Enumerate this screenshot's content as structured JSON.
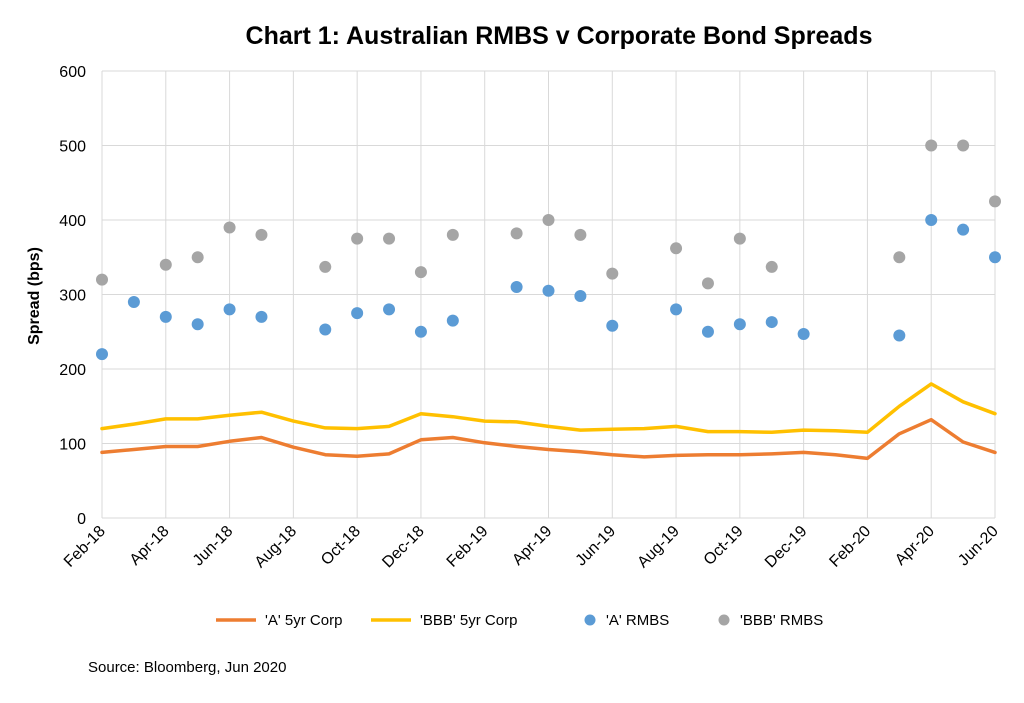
{
  "chart_data": {
    "type": "line",
    "title": "Chart 1: Australian RMBS v Corporate Bond Spreads",
    "ylabel": "Spread (bps)",
    "xlabel": "",
    "ylim": [
      0,
      600
    ],
    "yticks": [
      0,
      100,
      200,
      300,
      400,
      500,
      600
    ],
    "x_start": "2018-02",
    "x_end": "2020-06",
    "x_tick_labels": [
      "Feb-18",
      "Apr-18",
      "Jun-18",
      "Aug-18",
      "Oct-18",
      "Dec-18",
      "Feb-19",
      "Apr-19",
      "Jun-19",
      "Aug-19",
      "Oct-19",
      "Dec-19",
      "Feb-20",
      "Apr-20",
      "Jun-20"
    ],
    "grid": true,
    "legend_position": "bottom",
    "series": [
      {
        "name": "'A' 5yr Corp",
        "type": "line",
        "color": "#ED7D31",
        "x": [
          "2018-02",
          "2018-03",
          "2018-04",
          "2018-05",
          "2018-06",
          "2018-07",
          "2018-08",
          "2018-09",
          "2018-10",
          "2018-11",
          "2018-12",
          "2019-01",
          "2019-02",
          "2019-03",
          "2019-04",
          "2019-05",
          "2019-06",
          "2019-07",
          "2019-08",
          "2019-09",
          "2019-10",
          "2019-11",
          "2019-12",
          "2020-01",
          "2020-02",
          "2020-03",
          "2020-04",
          "2020-05",
          "2020-06"
        ],
        "values": [
          88,
          92,
          96,
          96,
          103,
          108,
          95,
          85,
          83,
          86,
          105,
          108,
          101,
          96,
          92,
          89,
          85,
          82,
          84,
          85,
          85,
          86,
          88,
          85,
          80,
          113,
          132,
          102,
          88
        ]
      },
      {
        "name": "'BBB' 5yr Corp",
        "type": "line",
        "color": "#FFC000",
        "x": [
          "2018-02",
          "2018-03",
          "2018-04",
          "2018-05",
          "2018-06",
          "2018-07",
          "2018-08",
          "2018-09",
          "2018-10",
          "2018-11",
          "2018-12",
          "2019-01",
          "2019-02",
          "2019-03",
          "2019-04",
          "2019-05",
          "2019-06",
          "2019-07",
          "2019-08",
          "2019-09",
          "2019-10",
          "2019-11",
          "2019-12",
          "2020-01",
          "2020-02",
          "2020-03",
          "2020-04",
          "2020-05",
          "2020-06"
        ],
        "values": [
          120,
          126,
          133,
          133,
          138,
          142,
          130,
          121,
          120,
          123,
          140,
          136,
          130,
          129,
          123,
          118,
          119,
          120,
          123,
          116,
          116,
          115,
          118,
          117,
          115,
          150,
          180,
          156,
          140
        ]
      },
      {
        "name": "'A' RMBS",
        "type": "scatter",
        "color": "#5B9BD5",
        "x": [
          "2018-02",
          "2018-03",
          "2018-04",
          "2018-05",
          "2018-06",
          "2018-07",
          "2018-09",
          "2018-10",
          "2018-11",
          "2018-12",
          "2019-01",
          "2019-03",
          "2019-04",
          "2019-05",
          "2019-06",
          "2019-08",
          "2019-09",
          "2019-10",
          "2019-11",
          "2019-12",
          "2020-03",
          "2020-04",
          "2020-05",
          "2020-06"
        ],
        "values": [
          220,
          290,
          270,
          260,
          280,
          270,
          253,
          275,
          280,
          250,
          265,
          310,
          305,
          298,
          258,
          280,
          250,
          260,
          263,
          247,
          245,
          400,
          387,
          350
        ]
      },
      {
        "name": "'BBB' RMBS",
        "type": "scatter",
        "color": "#A5A5A5",
        "x": [
          "2018-02",
          "2018-04",
          "2018-05",
          "2018-06",
          "2018-07",
          "2018-09",
          "2018-10",
          "2018-11",
          "2018-12",
          "2019-01",
          "2019-03",
          "2019-04",
          "2019-05",
          "2019-06",
          "2019-08",
          "2019-09",
          "2019-10",
          "2019-11",
          "2020-03",
          "2020-04",
          "2020-05",
          "2020-06"
        ],
        "values": [
          320,
          340,
          350,
          390,
          380,
          337,
          375,
          375,
          330,
          380,
          382,
          400,
          380,
          328,
          362,
          315,
          375,
          337,
          350,
          500,
          500,
          425
        ]
      }
    ]
  },
  "source_note": "Source: Bloomberg, Jun 2020"
}
